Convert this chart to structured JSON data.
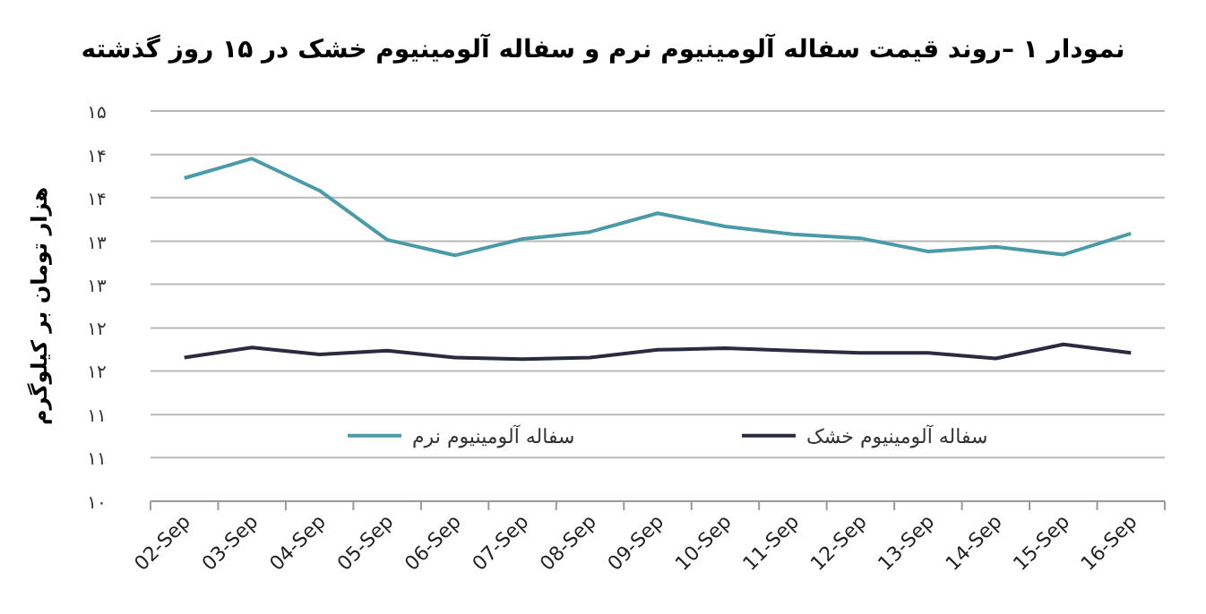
{
  "chart_data": {
    "type": "line",
    "title": "نمودار ۱ –روند قیمت سفاله آلومینیوم نرم و سفاله آلومینیوم خشک در ۱۵ روز گذشته",
    "ylabel": "هزار تومان بر کیلوگرم",
    "categories": [
      "02-Sep",
      "03-Sep",
      "04-Sep",
      "05-Sep",
      "06-Sep",
      "07-Sep",
      "08-Sep",
      "09-Sep",
      "10-Sep",
      "11-Sep",
      "12-Sep",
      "13-Sep",
      "14-Sep",
      "15-Sep",
      "16-Sep"
    ],
    "series": [
      {
        "name": "سفاله آلومینیوم نرم",
        "color": "#4a9aa8",
        "values": [
          14.14,
          14.39,
          13.98,
          13.35,
          13.15,
          13.36,
          13.45,
          13.69,
          13.52,
          13.42,
          13.37,
          13.2,
          13.26,
          13.16,
          13.43
        ]
      },
      {
        "name": "سفاله آلومینیوم خشک",
        "color": "#2a2a40",
        "values": [
          11.84,
          11.97,
          11.88,
          11.93,
          11.84,
          11.82,
          11.84,
          11.94,
          11.96,
          11.93,
          11.9,
          11.9,
          11.83,
          12.01,
          11.9
        ]
      }
    ],
    "ylim": [
      10,
      15
    ],
    "yticks": [
      {
        "value": 10,
        "label": "۱۰"
      },
      {
        "value": 10.56,
        "label": "۱۱"
      },
      {
        "value": 11.11,
        "label": "۱۱"
      },
      {
        "value": 11.67,
        "label": "۱۲"
      },
      {
        "value": 12.22,
        "label": "۱۲"
      },
      {
        "value": 12.78,
        "label": "۱۳"
      },
      {
        "value": 13.33,
        "label": "۱۳"
      },
      {
        "value": 13.89,
        "label": "۱۴"
      },
      {
        "value": 14.44,
        "label": "۱۴"
      },
      {
        "value": 15,
        "label": "۱۵"
      }
    ],
    "grid": "y",
    "legend": "bottom",
    "marker": "none",
    "line_style": "solid"
  }
}
